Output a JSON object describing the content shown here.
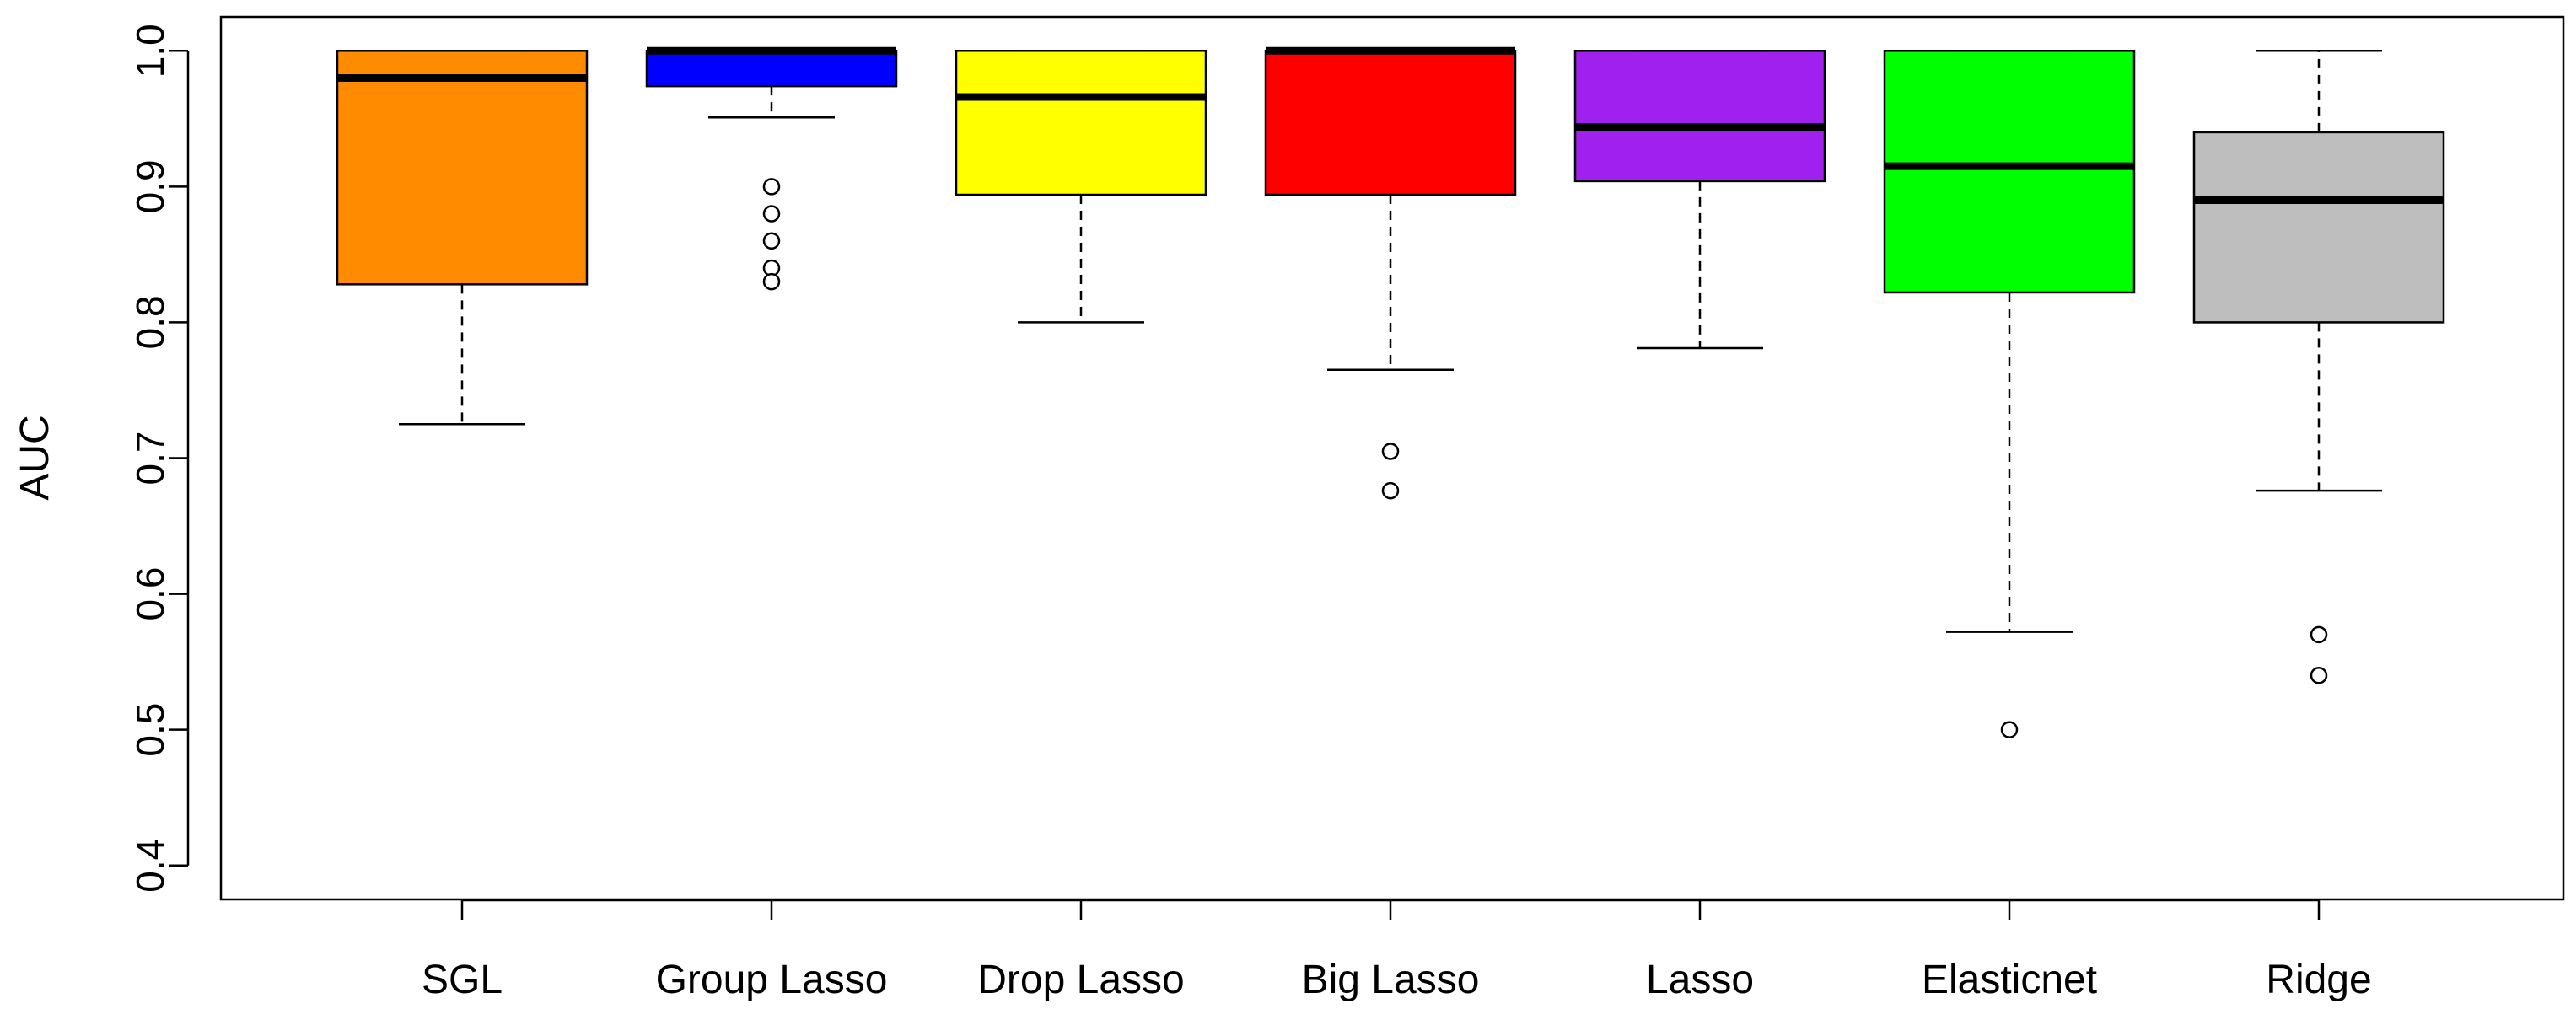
{
  "chart_data": {
    "type": "boxplot",
    "title": "",
    "xlabel": "",
    "ylabel": "AUC",
    "ylim": [
      0.375,
      1.025
    ],
    "yticks": [
      0.4,
      0.5,
      0.6,
      0.7,
      0.8,
      0.9,
      1.0
    ],
    "ytick_labels": [
      "0.4",
      "0.5",
      "0.6",
      "0.7",
      "0.8",
      "0.9",
      "1.0"
    ],
    "grid": false,
    "series": [
      {
        "name": "SGL",
        "color": "#ff8c00",
        "whisker_low": 0.725,
        "q1": 0.828,
        "median": 0.98,
        "q3": 1.0,
        "whisker_high": 1.0,
        "outliers": []
      },
      {
        "name": "Group Lasso",
        "color": "#0000ff",
        "whisker_low": 0.951,
        "q1": 0.974,
        "median": 1.0,
        "q3": 1.0,
        "whisker_high": 1.0,
        "outliers": [
          0.9,
          0.88,
          0.86,
          0.84,
          0.83
        ]
      },
      {
        "name": "Drop Lasso",
        "color": "#ffff00",
        "whisker_low": 0.8,
        "q1": 0.894,
        "median": 0.966,
        "q3": 1.0,
        "whisker_high": 1.0,
        "outliers": []
      },
      {
        "name": "Big Lasso",
        "color": "#ff0000",
        "whisker_low": 0.765,
        "q1": 0.894,
        "median": 1.0,
        "q3": 1.0,
        "whisker_high": 1.0,
        "outliers": [
          0.705,
          0.676
        ]
      },
      {
        "name": "Lasso",
        "color": "#a020f0",
        "whisker_low": 0.781,
        "q1": 0.904,
        "median": 0.944,
        "q3": 1.0,
        "whisker_high": 1.0,
        "outliers": []
      },
      {
        "name": "Elasticnet",
        "color": "#00ff00",
        "whisker_low": 0.572,
        "q1": 0.822,
        "median": 0.915,
        "q3": 1.0,
        "whisker_high": 1.0,
        "outliers": [
          0.5
        ]
      },
      {
        "name": "Ridge",
        "color": "#bebebe",
        "whisker_low": 0.676,
        "q1": 0.8,
        "median": 0.89,
        "q3": 0.94,
        "whisker_high": 1.0,
        "outliers": [
          0.57,
          0.54
        ]
      }
    ]
  }
}
